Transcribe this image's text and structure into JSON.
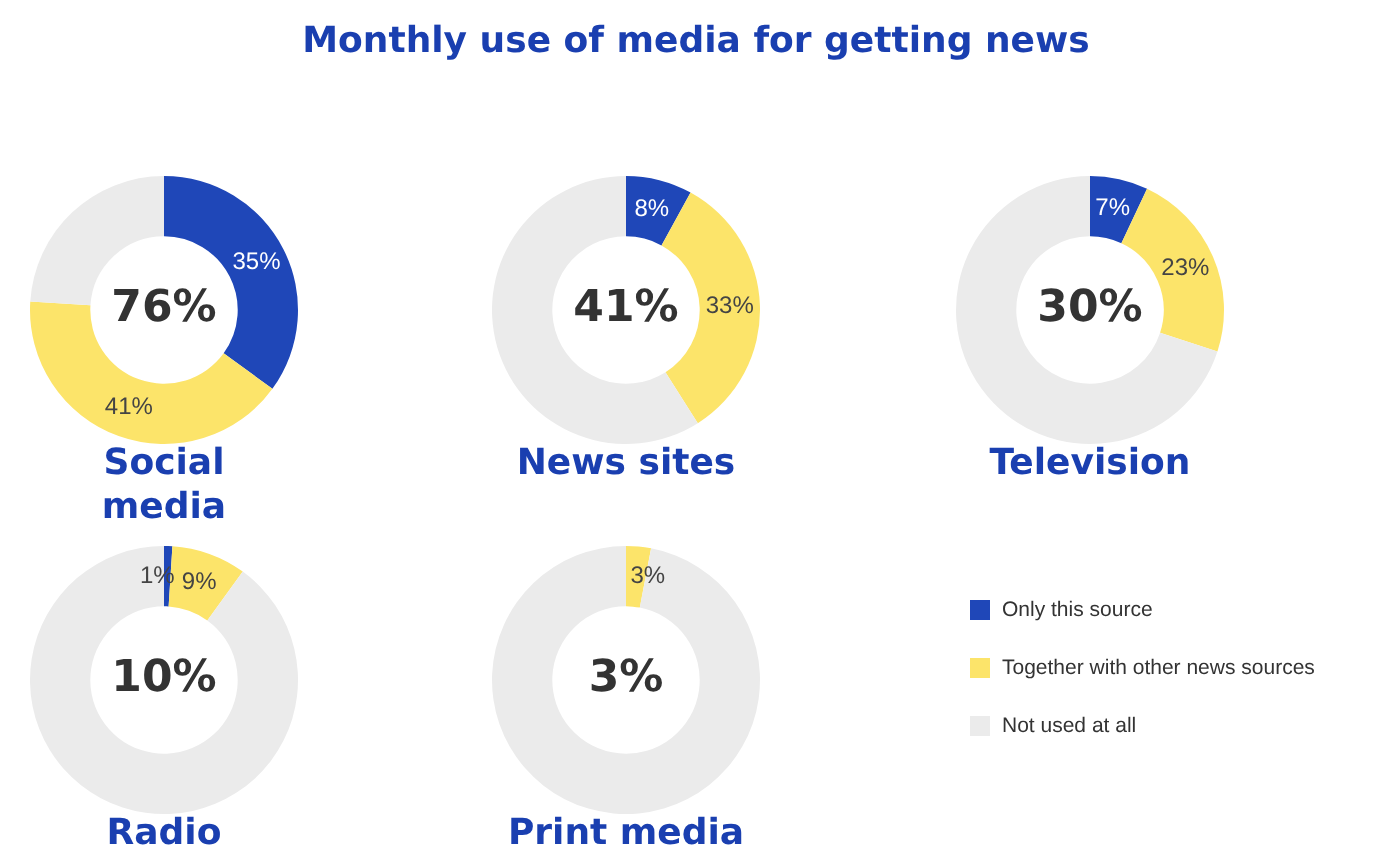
{
  "chart_data": [
    {
      "type": "other",
      "title": "Monthly use of media for getting news"
    },
    {
      "type": "donut",
      "title": "Social media",
      "categories": [
        null,
        null,
        null
      ],
      "values": [
        35,
        41,
        24
      ],
      "colors": [
        "#1f47b8",
        "#fce46a",
        "#ebebeb"
      ],
      "value_labels": [
        "35%",
        "41%",
        null
      ],
      "annotations": [
        "76%"
      ]
    },
    {
      "type": "donut",
      "title": "News sites",
      "categories": [
        null,
        null,
        null
      ],
      "values": [
        8,
        33,
        59
      ],
      "colors": [
        "#1f47b8",
        "#fce46a",
        "#ebebeb"
      ],
      "value_labels": [
        "8%",
        "33%",
        null
      ],
      "annotations": [
        "41%"
      ]
    },
    {
      "type": "donut",
      "title": "Television",
      "categories": [
        null,
        null,
        null
      ],
      "values": [
        7,
        23,
        70
      ],
      "colors": [
        "#1f47b8",
        "#fce46a",
        "#ebebeb"
      ],
      "value_labels": [
        "7%",
        "23%",
        null
      ],
      "annotations": [
        "30%"
      ]
    },
    {
      "type": "donut",
      "title": "Radio",
      "categories": [
        null,
        null,
        null
      ],
      "values": [
        1,
        9,
        90
      ],
      "colors": [
        "#1f47b8",
        "#fce46a",
        "#ebebeb"
      ],
      "value_labels": [
        "1%",
        "9%",
        null
      ],
      "annotations": [
        "10%"
      ]
    },
    {
      "type": "donut",
      "title": "Print media",
      "categories": [
        "Only this source",
        "Together with other news sources",
        "Not used at all"
      ],
      "values": [
        0,
        3,
        97
      ],
      "colors": [
        "#1f47b8",
        "#fce46a",
        "#ebebeb"
      ],
      "value_labels": [
        null,
        "3%",
        null
      ],
      "annotations": [
        "3%"
      ],
      "legend": "right"
    }
  ]
}
